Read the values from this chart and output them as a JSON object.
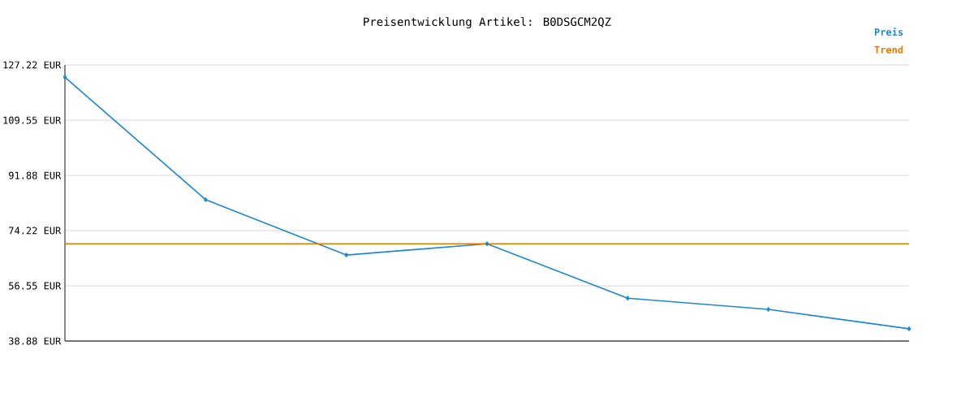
{
  "chart_data": {
    "type": "line",
    "title": "Preisentwicklung Artikel: B0DSGCM2QZ",
    "categories": [
      null,
      null,
      null,
      null,
      null,
      null,
      null
    ],
    "series": [
      {
        "name": "Preis",
        "color": "#1e88d2",
        "values": [
          123.3,
          84.1,
          66.4,
          70.0,
          52.6,
          49.0,
          42.8
        ],
        "marker": "diamond"
      },
      {
        "name": "Trend",
        "color": "#e07b00",
        "values": [
          70.0,
          70.0,
          70.0,
          70.0,
          70.0,
          70.0,
          70.0
        ],
        "marker": "none"
      }
    ],
    "ylim": [
      38.88,
      127.22
    ],
    "yticks": [
      {
        "value": 38.88,
        "label": "38.88 EUR"
      },
      {
        "value": 56.55,
        "label": "56.55 EUR"
      },
      {
        "value": 74.22,
        "label": "74.22 EUR"
      },
      {
        "value": 91.88,
        "label": "91.88 EUR"
      },
      {
        "value": 109.55,
        "label": "109.55 EUR"
      },
      {
        "value": 127.22,
        "label": "127.22 EUR"
      }
    ],
    "grid": "y",
    "legend": "top right"
  }
}
